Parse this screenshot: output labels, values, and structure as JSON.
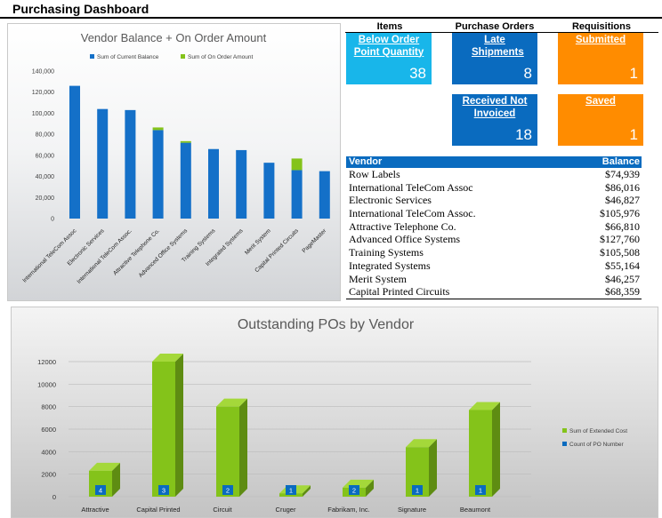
{
  "page": {
    "title": "Purchasing Dashboard"
  },
  "kpi": {
    "headers": {
      "items": "Items",
      "purchase_orders": "Purchase Orders",
      "requisitions": "Requisitions"
    },
    "tiles": [
      {
        "label": "Below Order Point Quantity",
        "value": "38",
        "color": "#18b6ea"
      },
      {
        "label": "Late Shipments",
        "value": "8",
        "color": "#0a6bbf"
      },
      {
        "label": "Submitted",
        "value": "1",
        "color": "#ff8c00"
      },
      {
        "label": "Received Not Invoiced",
        "value": "18",
        "color": "#0a6bbf"
      },
      {
        "label": "Saved",
        "value": "1",
        "color": "#ff8c00"
      }
    ]
  },
  "vendor_table": {
    "columns": [
      "Vendor",
      "Balance"
    ],
    "rows": [
      [
        "Row Labels",
        "$74,939"
      ],
      [
        "International TeleCom Assoc",
        "$86,016"
      ],
      [
        "Electronic Services",
        "$46,827"
      ],
      [
        "International TeleCom Assoc.",
        "$105,976"
      ],
      [
        "Attractive Telephone Co.",
        "$66,810"
      ],
      [
        "Advanced Office Systems",
        "$127,760"
      ],
      [
        "Training Systems",
        "$105,508"
      ],
      [
        "Integrated Systems",
        "$55,164"
      ],
      [
        "Merit System",
        "$46,257"
      ],
      [
        "Capital Printed Circuits",
        "$68,359"
      ]
    ]
  },
  "chart_data": [
    {
      "type": "bar",
      "stacked": true,
      "title": "Vendor Balance + On Order Amount",
      "legend_position": "top",
      "categories": [
        "International TeleCom Assoc",
        "Electronic Services",
        "International TeleCom Assoc.",
        "Attractive Telephone Co.",
        "Advanced Office Systems",
        "Training Systems",
        "Integrated Systems",
        "Merit System",
        "Capital Printed Circuits",
        "PageMaster"
      ],
      "series": [
        {
          "name": "Sum of Current Balance",
          "color": "#1470c8",
          "values": [
            126000,
            104000,
            103000,
            84000,
            72000,
            66000,
            65000,
            53000,
            46000,
            45000
          ]
        },
        {
          "name": "Sum of On Order Amount",
          "color": "#84c31a",
          "values": [
            0,
            0,
            0,
            2500,
            1500,
            0,
            0,
            0,
            11000,
            0
          ]
        }
      ],
      "yticks": [
        "140,000",
        "120,000",
        "100,000",
        "80,000",
        "60,000",
        "40,000",
        "20,000",
        "0"
      ],
      "ylim": [
        0,
        140000
      ],
      "grid": false
    },
    {
      "type": "bar",
      "three_d": true,
      "title": "Outstanding POs by Vendor",
      "legend_position": "right",
      "categories": [
        "Attractive",
        "Capital Printed",
        "Circuit",
        "Cruger",
        "Fabrikam, Inc.",
        "Signature",
        "Beaumont"
      ],
      "series": [
        {
          "name": "Sum of Extended Cost",
          "color": "#84c31a",
          "values": [
            2300,
            12000,
            8000,
            300,
            800,
            4400,
            7700
          ]
        },
        {
          "name": "Count of PO Number",
          "color": "#0a6bbf",
          "values": [
            4,
            3,
            2,
            1,
            2,
            1,
            1
          ]
        }
      ],
      "yticks": [
        "12000",
        "10000",
        "8000",
        "6000",
        "4000",
        "2000",
        "0"
      ],
      "ylim": [
        0,
        12000
      ],
      "grid": true
    }
  ]
}
